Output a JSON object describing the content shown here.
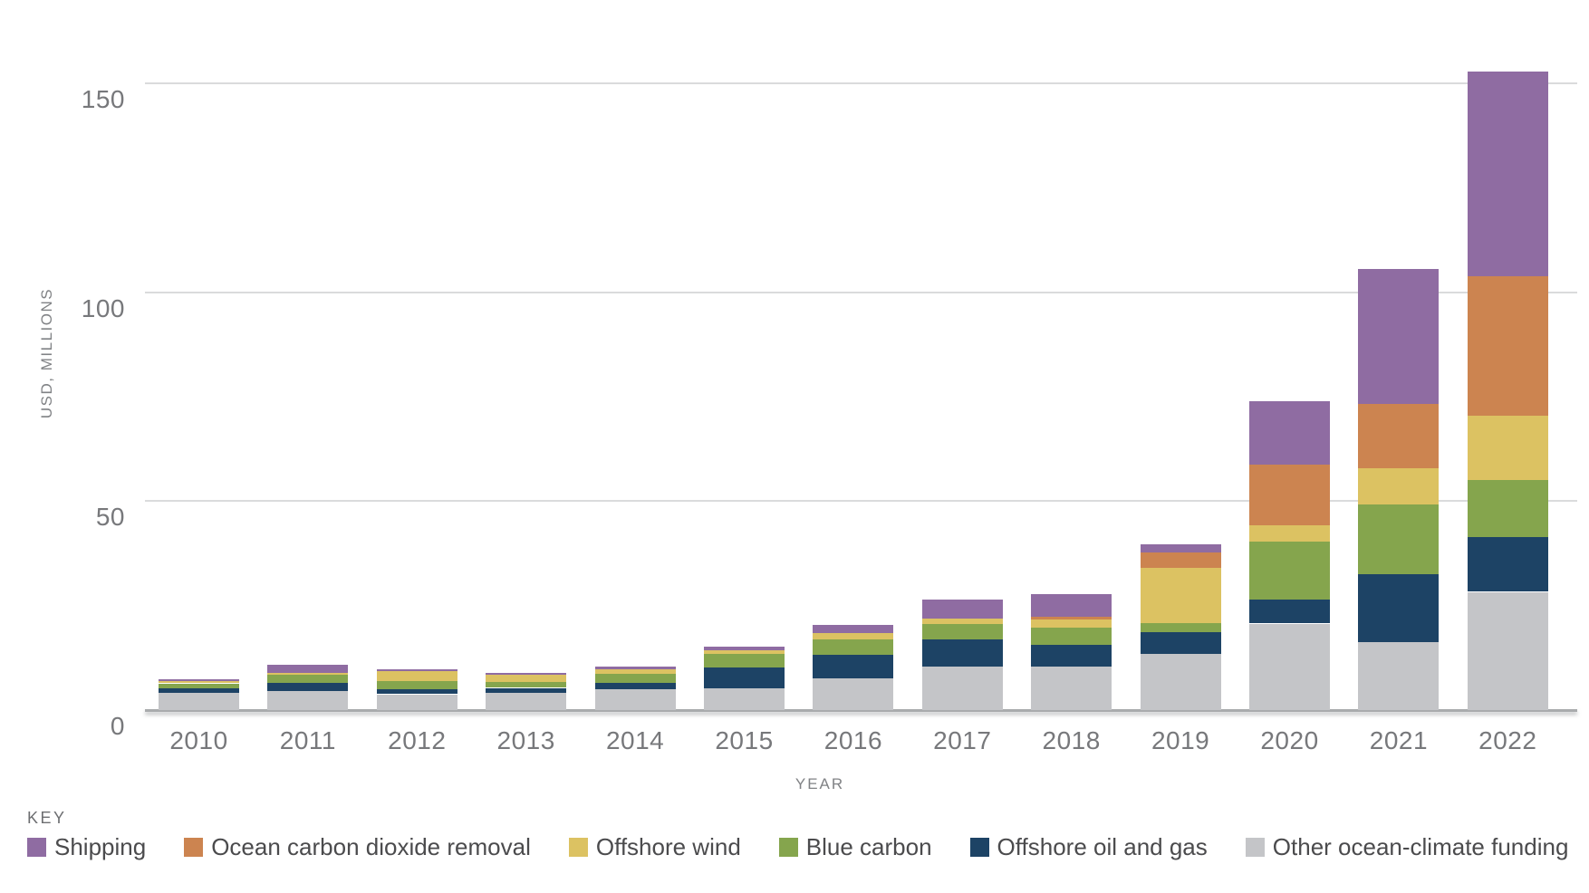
{
  "chart_data": {
    "type": "bar",
    "stacked": true,
    "title": "",
    "xlabel": "YEAR",
    "ylabel": "USD, MILLIONS",
    "legend_title": "KEY",
    "legend_position": "bottom",
    "grid": "horizontal",
    "ylim": [
      0,
      160
    ],
    "y_ticks": [
      0,
      50,
      100,
      150
    ],
    "categories": [
      "2010",
      "2011",
      "2012",
      "2013",
      "2014",
      "2015",
      "2016",
      "2017",
      "2018",
      "2019",
      "2020",
      "2021",
      "2022"
    ],
    "series": [
      {
        "name": "Shipping",
        "color": "#8F6CA2",
        "values": [
          0.4,
          1.9,
          0.4,
          0.4,
          0.7,
          0.7,
          1.8,
          4.5,
          5.4,
          2.0,
          15.2,
          32.2,
          49.0
        ]
      },
      {
        "name": "Ocean carbon dioxide removal",
        "color": "#CC8450",
        "values": [
          0,
          0,
          0,
          0,
          0,
          0,
          0,
          0,
          0.7,
          3.6,
          14.5,
          15.5,
          33.4
        ]
      },
      {
        "name": "Offshore wind",
        "color": "#DCC262",
        "values": [
          0.5,
          0.5,
          2.5,
          1.7,
          1.0,
          1.0,
          1.6,
          1.3,
          2.0,
          13.2,
          4.0,
          8.7,
          15.4
        ]
      },
      {
        "name": "Blue carbon",
        "color": "#85A54D",
        "values": [
          1.1,
          1.9,
          2.0,
          1.5,
          2.2,
          3.3,
          3.7,
          3.6,
          4.1,
          2.2,
          13.8,
          16.6,
          13.5
        ]
      },
      {
        "name": "Offshore oil and gas",
        "color": "#1D4365",
        "values": [
          1.1,
          2.0,
          1.1,
          1.2,
          1.5,
          4.9,
          5.7,
          6.5,
          5.1,
          5.3,
          5.8,
          16.3,
          13.2
        ]
      },
      {
        "name": "Other ocean-climate funding",
        "color": "#C4C5C8",
        "values": [
          4.2,
          4.5,
          3.8,
          4.1,
          5.0,
          5.2,
          7.5,
          10.5,
          10.5,
          13.4,
          20.7,
          16.3,
          28.3
        ]
      }
    ],
    "totals": [
      7.3,
      10.8,
      9.8,
      8.9,
      10.4,
      15.1,
      20.3,
      26.4,
      27.8,
      39.7,
      74.0,
      105.6,
      152.8
    ]
  },
  "colors": {
    "gridline": "#DADBDC",
    "baseline": "#A9ABAD",
    "tick_text": "#77787B",
    "axis_title_text": "#808285",
    "legend_text": "#4B4B4D"
  }
}
